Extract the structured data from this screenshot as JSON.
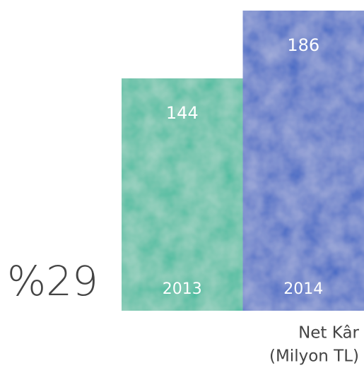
{
  "chart_data": {
    "type": "bar",
    "categories": [
      "2013",
      "2014"
    ],
    "values": [
      144,
      186
    ],
    "colors": [
      "#3dba9b",
      "#3a63c3"
    ],
    "annotation": "%29",
    "caption": [
      "Net Kâr",
      "(Milyon TL)"
    ]
  }
}
